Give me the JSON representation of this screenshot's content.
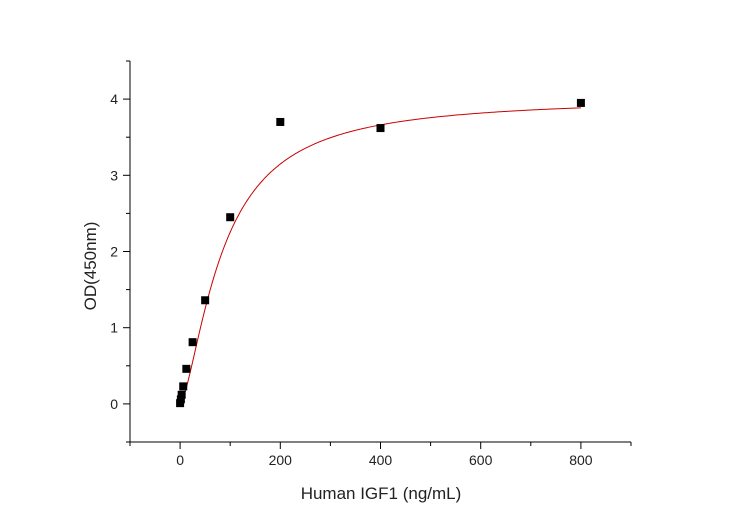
{
  "chart_data": {
    "type": "scatter",
    "title": "",
    "xlabel": "Human IGF1 (ng/mL)",
    "ylabel": "OD(450nm)",
    "xlim": [
      -100,
      900
    ],
    "ylim": [
      -0.5,
      4.5
    ],
    "x_ticks": [
      0,
      200,
      400,
      600,
      800
    ],
    "y_ticks": [
      0,
      1,
      2,
      3,
      4
    ],
    "grid": false,
    "legend": "none",
    "series": [
      {
        "marker": "square",
        "color": "#000000",
        "x": [
          0,
          1.5625,
          3.125,
          6.25,
          12.5,
          25,
          50,
          100,
          200,
          400,
          800
        ],
        "y": [
          0.01,
          0.06,
          0.12,
          0.23,
          0.46,
          0.81,
          1.36,
          2.45,
          3.7,
          3.62,
          3.95
        ]
      }
    ],
    "fit": {
      "type": "4PL",
      "color": "#cc0000",
      "bottom": 0.0,
      "top": 4.02,
      "ec50": 85,
      "hill": 1.5
    }
  }
}
